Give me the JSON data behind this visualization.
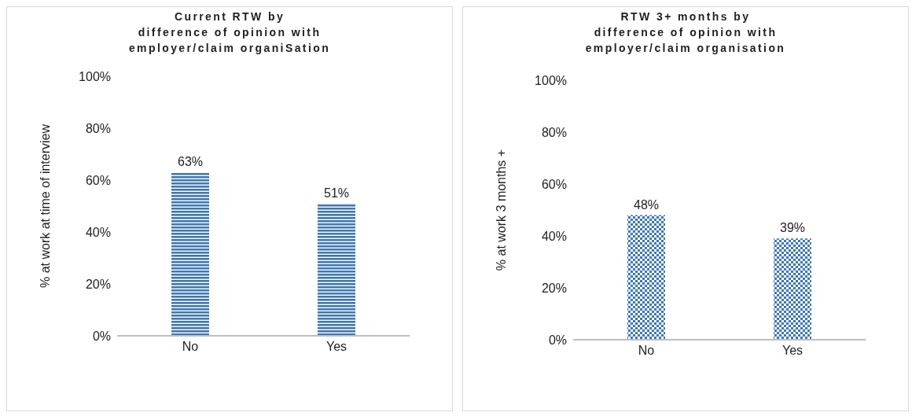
{
  "chart_data": [
    {
      "type": "bar",
      "title": "Current RTW by\ndifference of opinion with\nemployer/claim organiSation",
      "ylabel": "% at work at time of interview",
      "categories": [
        "No",
        "Yes"
      ],
      "values": [
        63,
        51
      ],
      "value_labels": [
        "63%",
        "51%"
      ],
      "color": "#3f78b0",
      "ylim": [
        0,
        100
      ],
      "yticks": [
        {
          "value": 0,
          "label": "0%"
        },
        {
          "value": 20,
          "label": "20%"
        },
        {
          "value": 40,
          "label": "40%"
        },
        {
          "value": 60,
          "label": "60%"
        },
        {
          "value": 80,
          "label": "80%"
        },
        {
          "value": 100,
          "label": "100%"
        }
      ]
    },
    {
      "type": "bar",
      "title": "RTW 3+ months by\ndifference of opinion with\nemployer/claim organisation",
      "ylabel": "% at work 3 months +",
      "categories": [
        "No",
        "Yes"
      ],
      "values": [
        48,
        39
      ],
      "value_labels": [
        "48%",
        "39%"
      ],
      "color": "#3f78b0",
      "ylim": [
        0,
        100
      ],
      "yticks": [
        {
          "value": 0,
          "label": "0%"
        },
        {
          "value": 20,
          "label": "20%"
        },
        {
          "value": 40,
          "label": "40%"
        },
        {
          "value": 60,
          "label": "60%"
        },
        {
          "value": 80,
          "label": "80%"
        },
        {
          "value": 100,
          "label": "100%"
        }
      ]
    }
  ]
}
